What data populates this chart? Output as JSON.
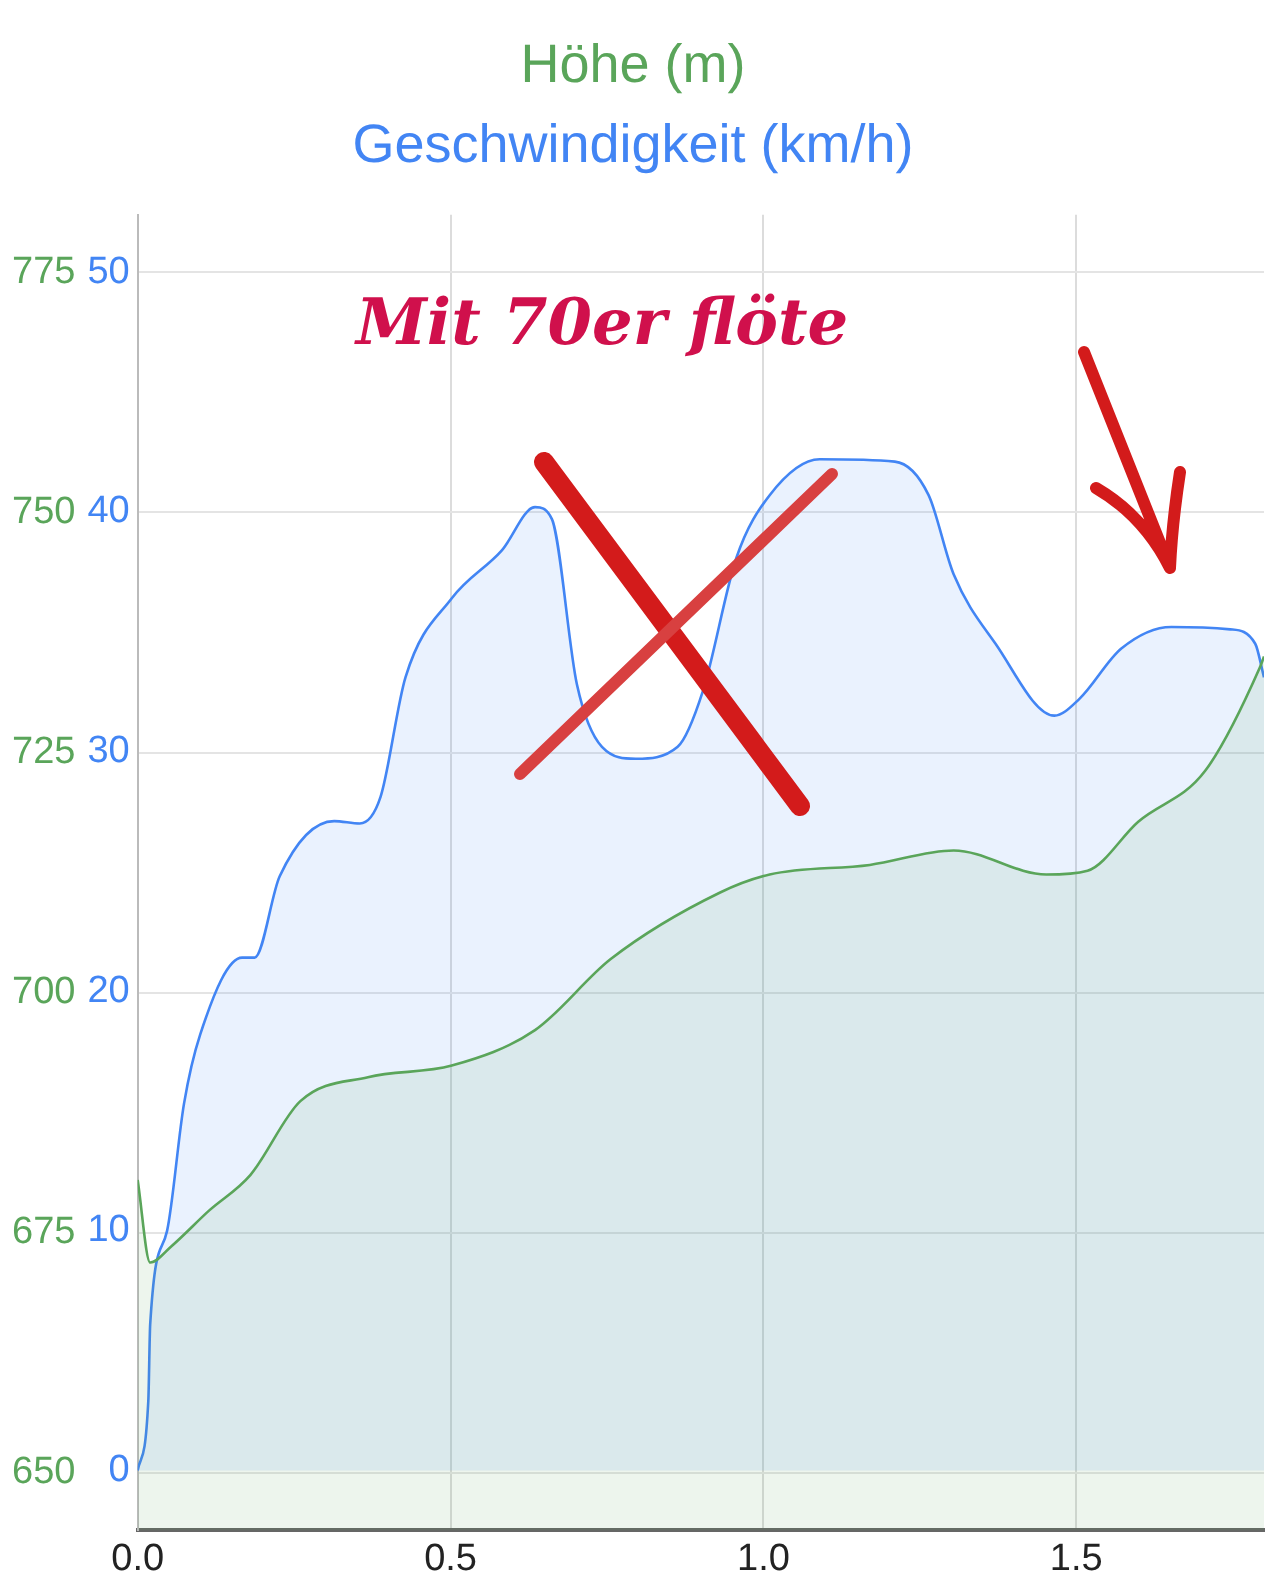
{
  "chart_data": {
    "type": "area",
    "legend": "top",
    "grid": true,
    "xlim": [
      0,
      1.8
    ],
    "xticks": [
      {
        "value": 0,
        "label": "0.0"
      },
      {
        "value": 0.5,
        "label": "0.5"
      },
      {
        "value": 1,
        "label": "1.0"
      },
      {
        "value": 1.5,
        "label": "1.5"
      }
    ],
    "ylim": [
      644,
      781
    ],
    "yticks": [
      650,
      675,
      700,
      725,
      750,
      775
    ],
    "y2lim": [
      -2.5,
      52.4
    ],
    "y2ticks": [
      0,
      10,
      20,
      30,
      40,
      50
    ],
    "annotations": [
      "Mit 70er flöte"
    ],
    "series": [
      {
        "name": "Höhe (m)",
        "color": "#5aa55a",
        "x": [
          0,
          0.02,
          0.054,
          0.114,
          0.18,
          0.26,
          0.368,
          0.502,
          0.635,
          0.756,
          0.93,
          1.01,
          1.17,
          1.304,
          1.452,
          1.518,
          1.599,
          1.706,
          1.793,
          1.8
        ],
        "values": [
          680.5,
          671.9,
          673.6,
          677.3,
          681,
          688.7,
          691.2,
          692.4,
          696.1,
          703.5,
          710.4,
          712.3,
          713.3,
          714.8,
          712.3,
          712.7,
          717.8,
          723.1,
          733.8,
          735
        ]
      },
      {
        "name": "Geschwindigkeit (km/h)",
        "axis": "y2",
        "color": "#4285f4",
        "x": [
          0,
          0.017,
          0.02,
          0.047,
          0.074,
          0.1,
          0.167,
          0.187,
          0.227,
          0.314,
          0.355,
          0.388,
          0.428,
          0.502,
          0.582,
          0.635,
          0.662,
          0.702,
          0.742,
          0.796,
          0.863,
          0.903,
          0.957,
          1.01,
          1.09,
          1.21,
          1.264,
          1.304,
          1.371,
          1.465,
          1.505,
          1.572,
          1.652,
          1.746,
          1.786,
          1.8
        ],
        "values": [
          0,
          2.9,
          6.1,
          10,
          15.3,
          18.2,
          21.4,
          21.4,
          24.8,
          27.1,
          27,
          28.1,
          33.1,
          36.4,
          38.4,
          40.2,
          39.7,
          32.8,
          30.2,
          29.7,
          30.2,
          32.5,
          38.1,
          40.7,
          42.2,
          42.1,
          40.7,
          37.4,
          34.5,
          31.5,
          32.2,
          34.3,
          35.2,
          35.1,
          34.5,
          33.1
        ]
      }
    ]
  }
}
